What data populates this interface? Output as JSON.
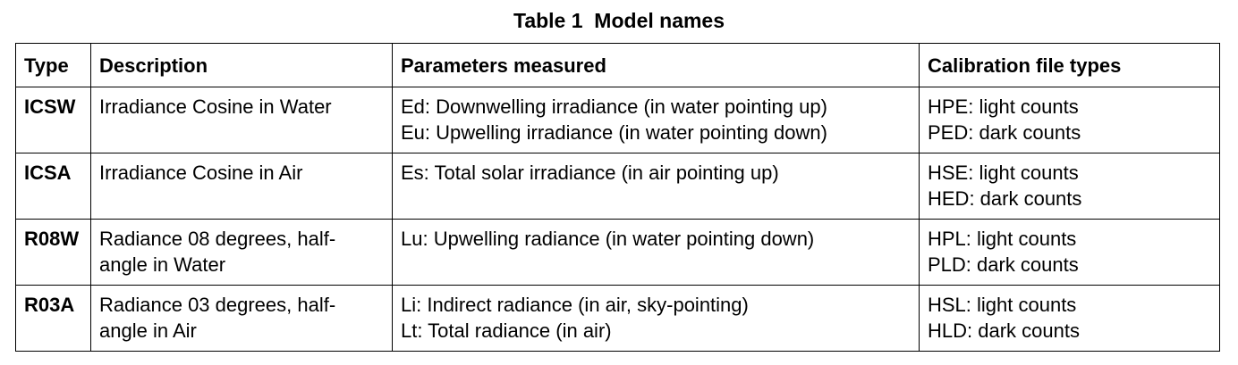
{
  "caption": "Table 1  Model names",
  "headers": {
    "type": "Type",
    "description": "Description",
    "parameters": "Parameters measured",
    "calibration": "Calibration file types"
  },
  "rows": [
    {
      "type": "ICSW",
      "description": [
        "Irradiance Cosine in Water"
      ],
      "parameters": [
        "Ed: Downwelling irradiance (in water pointing up)",
        "Eu: Upwelling irradiance (in water pointing down)"
      ],
      "calibration": [
        "HPE: light counts",
        "PED: dark counts"
      ]
    },
    {
      "type": "ICSA",
      "description": [
        "Irradiance Cosine in Air"
      ],
      "parameters": [
        "Es: Total solar irradiance (in air pointing up)"
      ],
      "calibration": [
        "HSE: light counts",
        "HED: dark counts"
      ]
    },
    {
      "type": "R08W",
      "description": [
        "Radiance 08 degrees, half-",
        "angle in Water"
      ],
      "parameters": [
        "Lu: Upwelling radiance (in water pointing down)"
      ],
      "calibration": [
        "HPL: light counts",
        "PLD: dark counts"
      ]
    },
    {
      "type": "R03A",
      "description": [
        "Radiance 03 degrees, half-",
        "angle in Air"
      ],
      "parameters": [
        "Li: Indirect radiance (in air, sky-pointing)",
        "Lt: Total radiance (in air)"
      ],
      "calibration": [
        "HSL: light counts",
        "HLD: dark counts"
      ]
    }
  ]
}
